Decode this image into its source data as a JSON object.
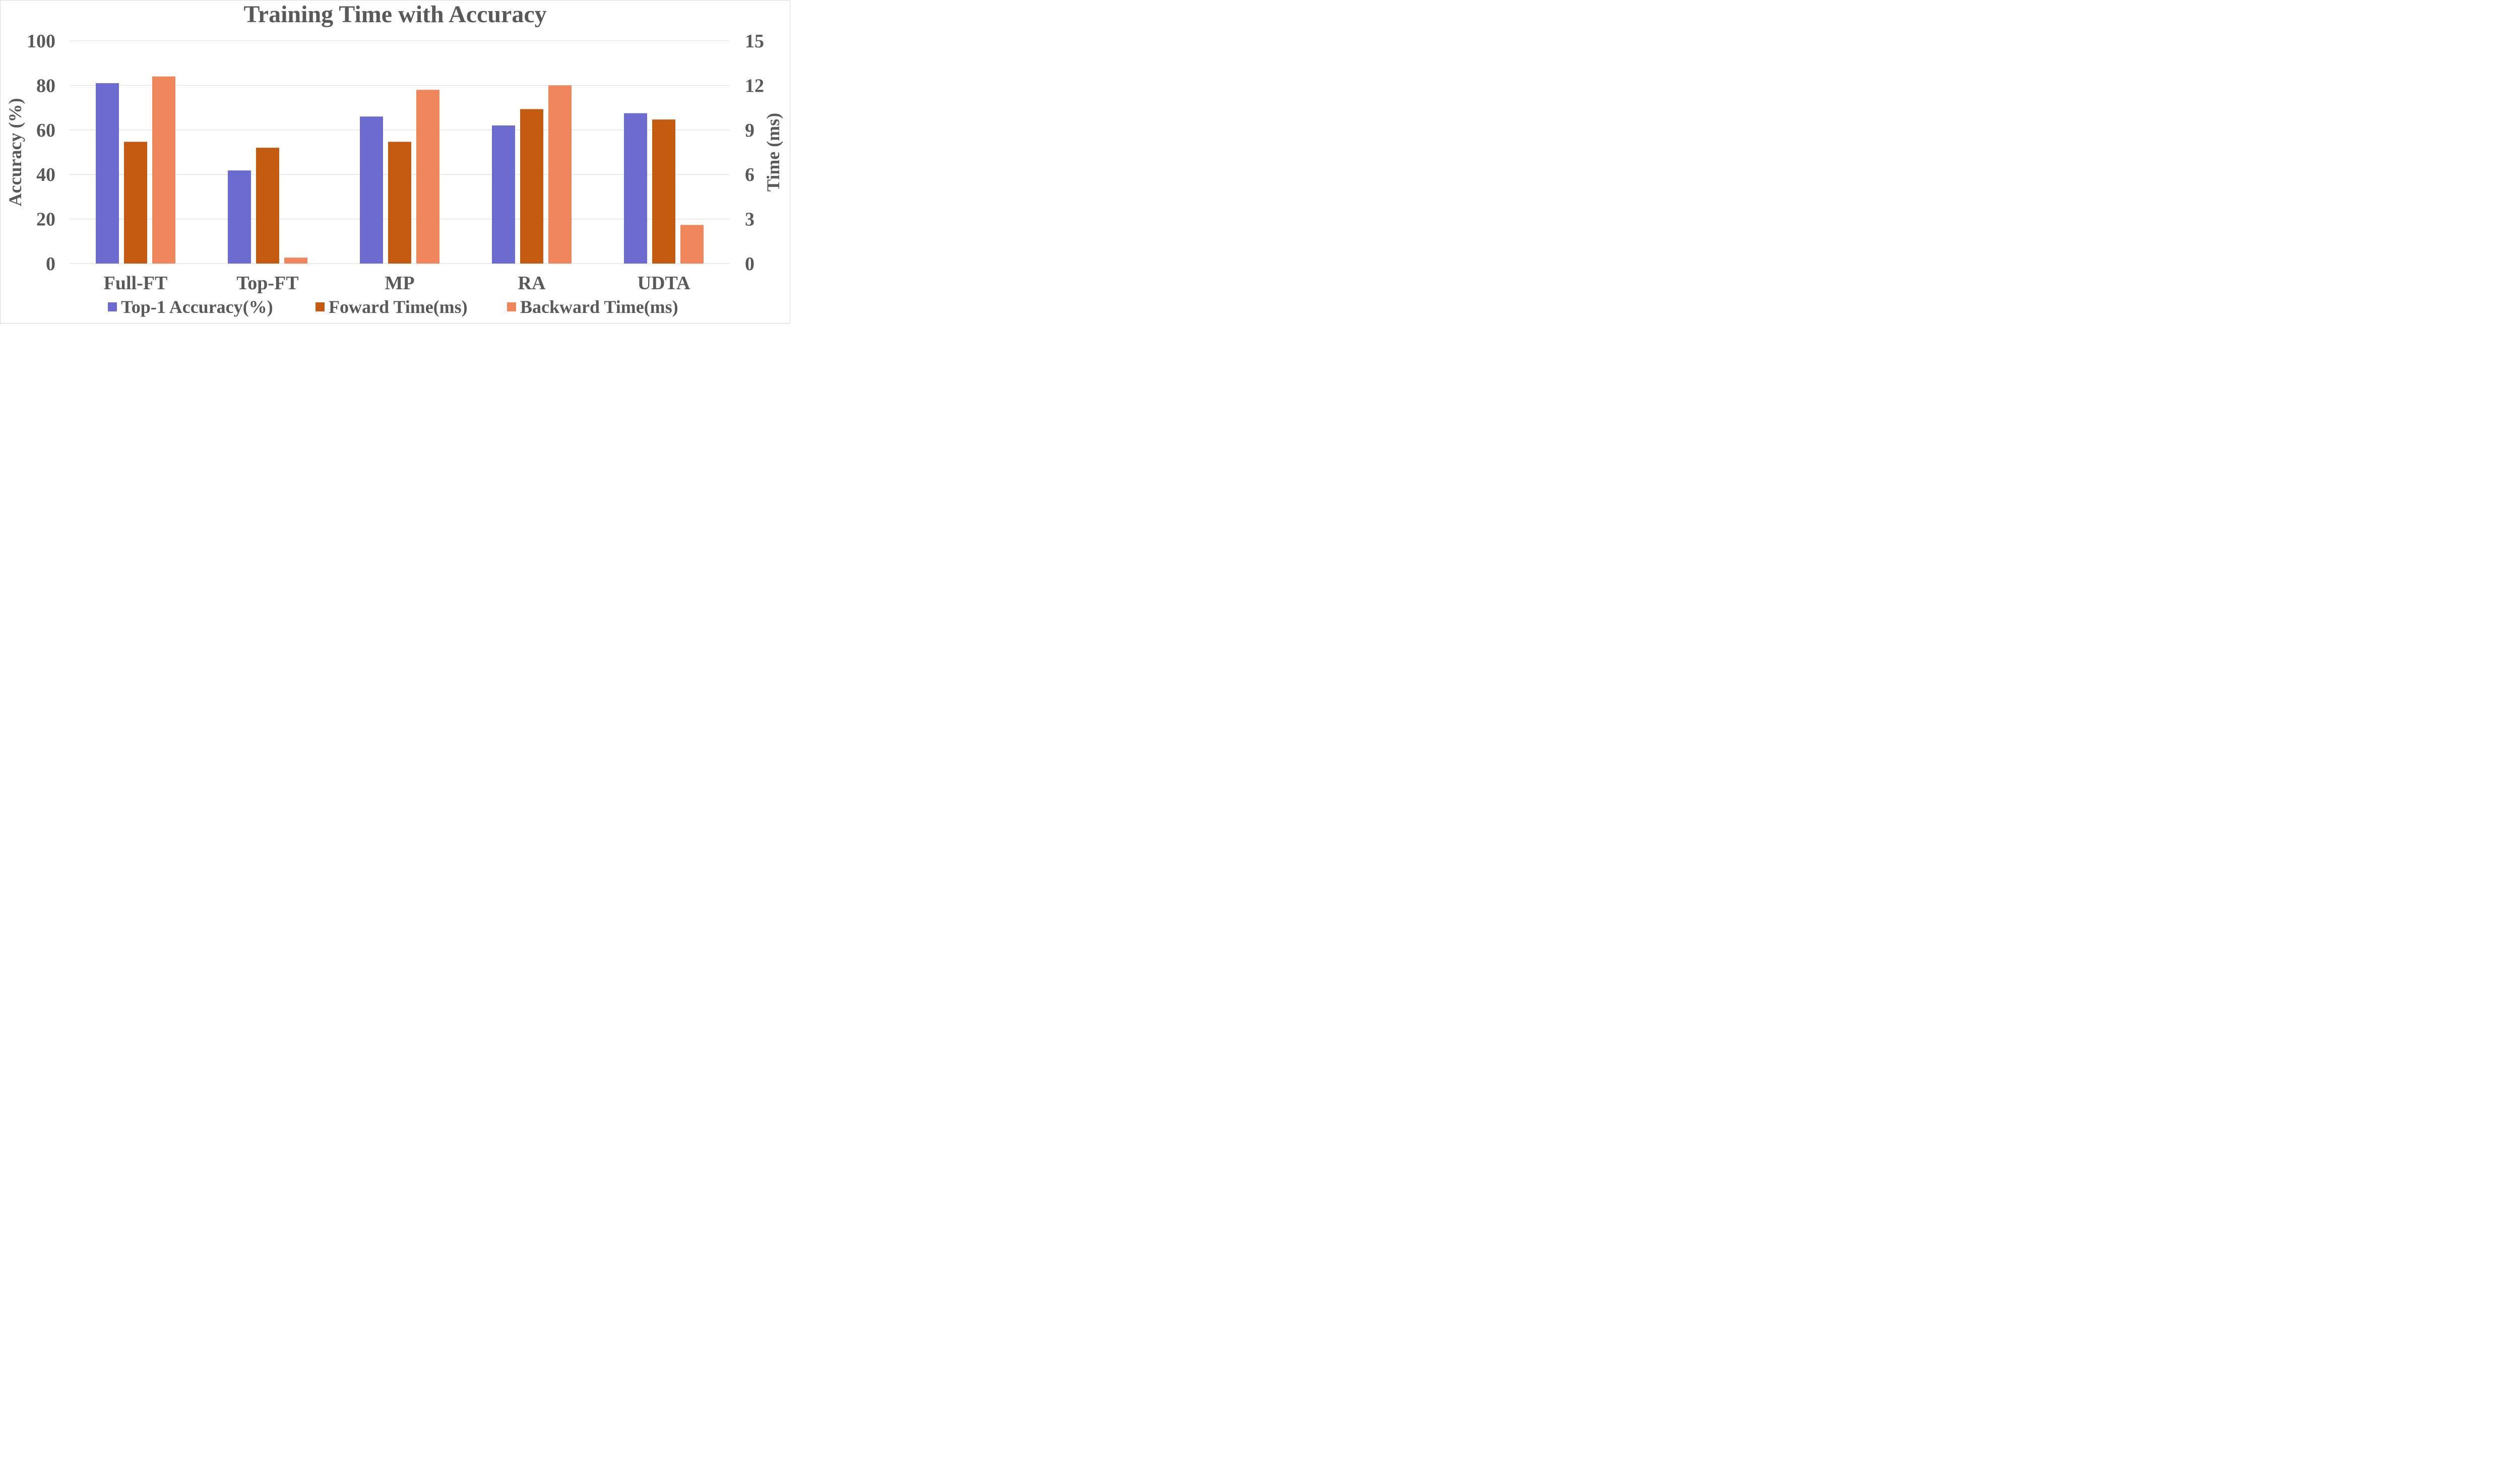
{
  "chart_data": {
    "type": "bar",
    "title": "Training Time with Accuracy",
    "categories": [
      "Full-FT",
      "Top-FT",
      "MP",
      "RA",
      "UDTA"
    ],
    "y_left": {
      "label": "Accuracy (%)",
      "range": [
        0,
        100
      ],
      "ticks": [
        0,
        20,
        40,
        60,
        80,
        100
      ]
    },
    "y_right": {
      "label": "Time (ms)",
      "range": [
        0,
        15
      ],
      "ticks": [
        0,
        3,
        6,
        9,
        12,
        15
      ]
    },
    "grid": true,
    "legend_position": "bottom",
    "series": [
      {
        "name": "Top-1 Accuracy(%)",
        "axis": "left",
        "color": "#6b6bd0",
        "values": [
          81,
          41.8,
          66,
          62,
          67.5
        ]
      },
      {
        "name": "Foward Time(ms)",
        "axis": "right",
        "color": "#c55a11",
        "values": [
          8.2,
          7.8,
          8.2,
          10.4,
          9.7
        ]
      },
      {
        "name": "Backward Time(ms)",
        "axis": "right",
        "color": "#ef855b",
        "values": [
          12.6,
          0.4,
          11.7,
          12.0,
          2.6
        ]
      }
    ]
  }
}
